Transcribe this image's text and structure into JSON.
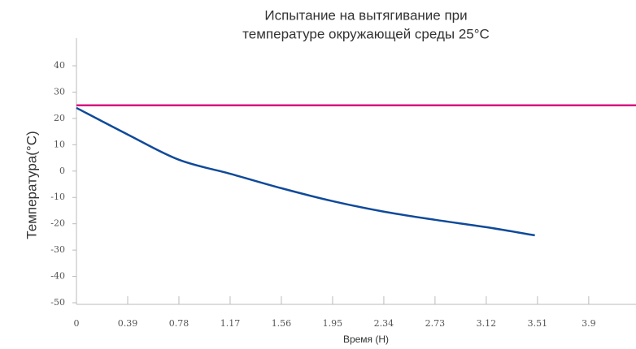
{
  "chart_data": {
    "type": "line",
    "title": [
      "Испытание на вытягивание при",
      "температуре окружающей среды 25°C"
    ],
    "x_label": "Время (H)",
    "y_label": "Температура(°C)",
    "series": [
      {
        "color": "#d6177f",
        "x": [
          0,
          4.26
        ],
        "values": [
          25,
          25
        ]
      },
      {
        "color": "#0f4a9a",
        "x": [
          0,
          0.39,
          0.78,
          1.17,
          1.56,
          1.95,
          2.34,
          2.73,
          3.12,
          3.49
        ],
        "values": [
          24,
          13.9,
          4.3,
          -1,
          -6.5,
          -11.4,
          -15.4,
          -18.5,
          -21.3,
          -24.4
        ]
      }
    ],
    "xlim": [
      0,
      4.26
    ],
    "xticks": [
      0,
      0.39,
      0.78,
      1.17,
      1.56,
      1.95,
      2.34,
      2.73,
      3.12,
      3.51,
      3.9
    ],
    "ylim": [
      -50,
      50
    ],
    "yticks": [
      -50,
      -40,
      -30,
      -20,
      -10,
      0,
      10,
      20,
      30,
      40
    ],
    "grid": false
  }
}
